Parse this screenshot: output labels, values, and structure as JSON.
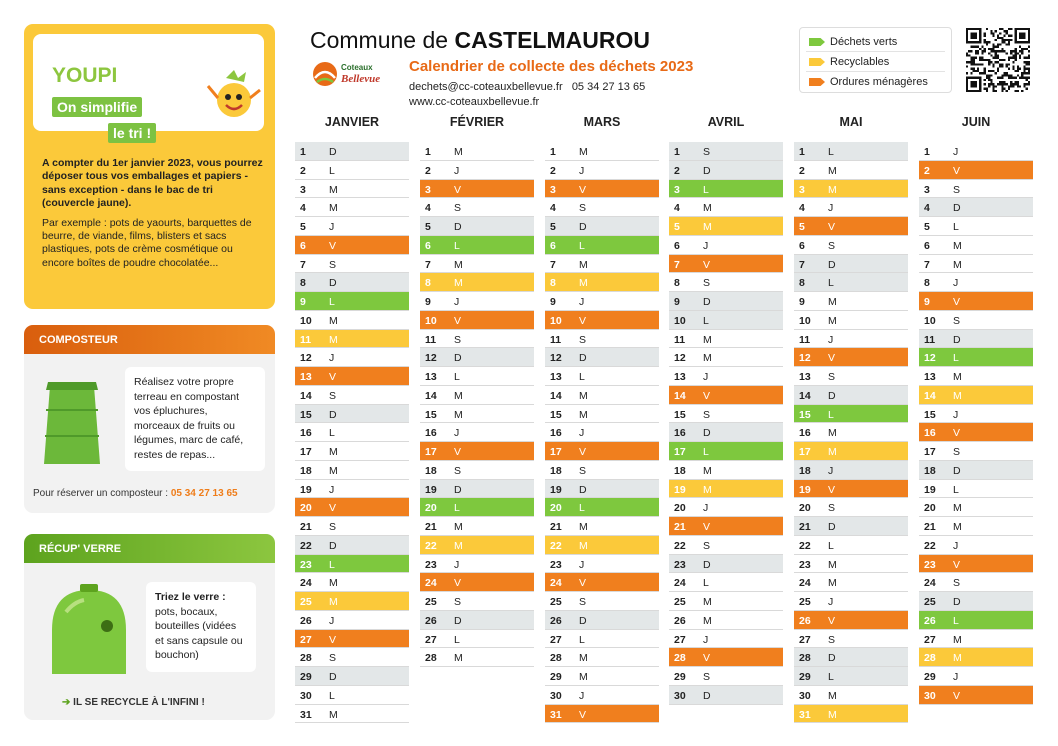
{
  "header": {
    "title_prefix": "Commune de ",
    "title_town": "CASTELMAUROU",
    "subtitle": "Calendrier de collecte des déchets 2023",
    "email": "dechets@cc-coteauxbellevue.fr",
    "phone": "05 34 27 13 65",
    "website": "www.cc-coteauxbellevue.fr",
    "logo_text_1": "Coteaux",
    "logo_text_2": "Bellevue"
  },
  "legend": [
    {
      "label": "Déchets verts",
      "color": "#7ec83e"
    },
    {
      "label": "Recyclables",
      "color": "#fbc93a"
    },
    {
      "label": "Ordures ménagères",
      "color": "#f07f1e"
    }
  ],
  "youpi": {
    "brand": "YOUPI",
    "tag_1": "On simplifie",
    "tag_2": "le tri !",
    "intro": "A compter du 1er janvier 2023, vous pourrez déposer tous vos emballages et papiers - sans exception - dans le bac de tri (couvercle jaune).",
    "example": "Par exemple : pots de yaourts, barquettes de beurre, de viande, films, blisters et sacs plastiques, pots de crème cosmétique ou encore boîtes de poudre chocolatée..."
  },
  "composteur": {
    "title": "COMPOSTEUR",
    "text": "Réalisez votre propre terreau en compostant vos épluchures, morceaux de fruits ou légumes, marc de café, restes de repas...",
    "reserve_label": "Pour réserver un composteur : ",
    "reserve_phone": "05 34 27 13 65"
  },
  "verre": {
    "title": "RÉCUP' VERRE",
    "text_bold": "Triez le verre :",
    "text": "pots, bocaux, bouteilles (vidées et sans capsule ou bouchon)",
    "footer": "IL SE RECYCLE À L'INFINI !"
  },
  "months": [
    {
      "name": "JANVIER",
      "days": [
        {
          "n": "1",
          "l": "D",
          "c": "grey"
        },
        {
          "n": "2",
          "l": "L",
          "c": "white"
        },
        {
          "n": "3",
          "l": "M",
          "c": "white"
        },
        {
          "n": "4",
          "l": "M",
          "c": "white"
        },
        {
          "n": "5",
          "l": "J",
          "c": "white"
        },
        {
          "n": "6",
          "l": "V",
          "c": "orange"
        },
        {
          "n": "7",
          "l": "S",
          "c": "white"
        },
        {
          "n": "8",
          "l": "D",
          "c": "grey"
        },
        {
          "n": "9",
          "l": "L",
          "c": "green"
        },
        {
          "n": "10",
          "l": "M",
          "c": "white"
        },
        {
          "n": "11",
          "l": "M",
          "c": "yellow"
        },
        {
          "n": "12",
          "l": "J",
          "c": "white"
        },
        {
          "n": "13",
          "l": "V",
          "c": "orange"
        },
        {
          "n": "14",
          "l": "S",
          "c": "white"
        },
        {
          "n": "15",
          "l": "D",
          "c": "grey"
        },
        {
          "n": "16",
          "l": "L",
          "c": "white"
        },
        {
          "n": "17",
          "l": "M",
          "c": "white"
        },
        {
          "n": "18",
          "l": "M",
          "c": "white"
        },
        {
          "n": "19",
          "l": "J",
          "c": "white"
        },
        {
          "n": "20",
          "l": "V",
          "c": "orange"
        },
        {
          "n": "21",
          "l": "S",
          "c": "white"
        },
        {
          "n": "22",
          "l": "D",
          "c": "grey"
        },
        {
          "n": "23",
          "l": "L",
          "c": "green"
        },
        {
          "n": "24",
          "l": "M",
          "c": "white"
        },
        {
          "n": "25",
          "l": "M",
          "c": "yellow"
        },
        {
          "n": "26",
          "l": "J",
          "c": "white"
        },
        {
          "n": "27",
          "l": "V",
          "c": "orange"
        },
        {
          "n": "28",
          "l": "S",
          "c": "white"
        },
        {
          "n": "29",
          "l": "D",
          "c": "grey"
        },
        {
          "n": "30",
          "l": "L",
          "c": "white"
        },
        {
          "n": "31",
          "l": "M",
          "c": "white"
        }
      ]
    },
    {
      "name": "FÉVRIER",
      "days": [
        {
          "n": "1",
          "l": "M",
          "c": "white"
        },
        {
          "n": "2",
          "l": "J",
          "c": "white"
        },
        {
          "n": "3",
          "l": "V",
          "c": "orange"
        },
        {
          "n": "4",
          "l": "S",
          "c": "white"
        },
        {
          "n": "5",
          "l": "D",
          "c": "grey"
        },
        {
          "n": "6",
          "l": "L",
          "c": "green"
        },
        {
          "n": "7",
          "l": "M",
          "c": "white"
        },
        {
          "n": "8",
          "l": "M",
          "c": "yellow"
        },
        {
          "n": "9",
          "l": "J",
          "c": "white"
        },
        {
          "n": "10",
          "l": "V",
          "c": "orange"
        },
        {
          "n": "11",
          "l": "S",
          "c": "white"
        },
        {
          "n": "12",
          "l": "D",
          "c": "grey"
        },
        {
          "n": "13",
          "l": "L",
          "c": "white"
        },
        {
          "n": "14",
          "l": "M",
          "c": "white"
        },
        {
          "n": "15",
          "l": "M",
          "c": "white"
        },
        {
          "n": "16",
          "l": "J",
          "c": "white"
        },
        {
          "n": "17",
          "l": "V",
          "c": "orange"
        },
        {
          "n": "18",
          "l": "S",
          "c": "white"
        },
        {
          "n": "19",
          "l": "D",
          "c": "grey"
        },
        {
          "n": "20",
          "l": "L",
          "c": "green"
        },
        {
          "n": "21",
          "l": "M",
          "c": "white"
        },
        {
          "n": "22",
          "l": "M",
          "c": "yellow"
        },
        {
          "n": "23",
          "l": "J",
          "c": "white"
        },
        {
          "n": "24",
          "l": "V",
          "c": "orange"
        },
        {
          "n": "25",
          "l": "S",
          "c": "white"
        },
        {
          "n": "26",
          "l": "D",
          "c": "grey"
        },
        {
          "n": "27",
          "l": "L",
          "c": "white"
        },
        {
          "n": "28",
          "l": "M",
          "c": "white"
        }
      ]
    },
    {
      "name": "MARS",
      "days": [
        {
          "n": "1",
          "l": "M",
          "c": "white"
        },
        {
          "n": "2",
          "l": "J",
          "c": "white"
        },
        {
          "n": "3",
          "l": "V",
          "c": "orange"
        },
        {
          "n": "4",
          "l": "S",
          "c": "white"
        },
        {
          "n": "5",
          "l": "D",
          "c": "grey"
        },
        {
          "n": "6",
          "l": "L",
          "c": "green"
        },
        {
          "n": "7",
          "l": "M",
          "c": "white"
        },
        {
          "n": "8",
          "l": "M",
          "c": "yellow"
        },
        {
          "n": "9",
          "l": "J",
          "c": "white"
        },
        {
          "n": "10",
          "l": "V",
          "c": "orange"
        },
        {
          "n": "11",
          "l": "S",
          "c": "white"
        },
        {
          "n": "12",
          "l": "D",
          "c": "grey"
        },
        {
          "n": "13",
          "l": "L",
          "c": "white"
        },
        {
          "n": "14",
          "l": "M",
          "c": "white"
        },
        {
          "n": "15",
          "l": "M",
          "c": "white"
        },
        {
          "n": "16",
          "l": "J",
          "c": "white"
        },
        {
          "n": "17",
          "l": "V",
          "c": "orange"
        },
        {
          "n": "18",
          "l": "S",
          "c": "white"
        },
        {
          "n": "19",
          "l": "D",
          "c": "grey"
        },
        {
          "n": "20",
          "l": "L",
          "c": "green"
        },
        {
          "n": "21",
          "l": "M",
          "c": "white"
        },
        {
          "n": "22",
          "l": "M",
          "c": "yellow"
        },
        {
          "n": "23",
          "l": "J",
          "c": "white"
        },
        {
          "n": "24",
          "l": "V",
          "c": "orange"
        },
        {
          "n": "25",
          "l": "S",
          "c": "white"
        },
        {
          "n": "26",
          "l": "D",
          "c": "grey"
        },
        {
          "n": "27",
          "l": "L",
          "c": "white"
        },
        {
          "n": "28",
          "l": "M",
          "c": "white"
        },
        {
          "n": "29",
          "l": "M",
          "c": "white"
        },
        {
          "n": "30",
          "l": "J",
          "c": "white"
        },
        {
          "n": "31",
          "l": "V",
          "c": "orange"
        }
      ]
    },
    {
      "name": "AVRIL",
      "days": [
        {
          "n": "1",
          "l": "S",
          "c": "grey"
        },
        {
          "n": "2",
          "l": "D",
          "c": "grey"
        },
        {
          "n": "3",
          "l": "L",
          "c": "green"
        },
        {
          "n": "4",
          "l": "M",
          "c": "white"
        },
        {
          "n": "5",
          "l": "M",
          "c": "yellow"
        },
        {
          "n": "6",
          "l": "J",
          "c": "white"
        },
        {
          "n": "7",
          "l": "V",
          "c": "orange"
        },
        {
          "n": "8",
          "l": "S",
          "c": "white"
        },
        {
          "n": "9",
          "l": "D",
          "c": "grey"
        },
        {
          "n": "10",
          "l": "L",
          "c": "grey"
        },
        {
          "n": "11",
          "l": "M",
          "c": "white"
        },
        {
          "n": "12",
          "l": "M",
          "c": "white"
        },
        {
          "n": "13",
          "l": "J",
          "c": "white"
        },
        {
          "n": "14",
          "l": "V",
          "c": "orange"
        },
        {
          "n": "15",
          "l": "S",
          "c": "white"
        },
        {
          "n": "16",
          "l": "D",
          "c": "grey"
        },
        {
          "n": "17",
          "l": "L",
          "c": "green"
        },
        {
          "n": "18",
          "l": "M",
          "c": "white"
        },
        {
          "n": "19",
          "l": "M",
          "c": "yellow"
        },
        {
          "n": "20",
          "l": "J",
          "c": "white"
        },
        {
          "n": "21",
          "l": "V",
          "c": "orange"
        },
        {
          "n": "22",
          "l": "S",
          "c": "white"
        },
        {
          "n": "23",
          "l": "D",
          "c": "grey"
        },
        {
          "n": "24",
          "l": "L",
          "c": "white"
        },
        {
          "n": "25",
          "l": "M",
          "c": "white"
        },
        {
          "n": "26",
          "l": "M",
          "c": "white"
        },
        {
          "n": "27",
          "l": "J",
          "c": "white"
        },
        {
          "n": "28",
          "l": "V",
          "c": "orange"
        },
        {
          "n": "29",
          "l": "S",
          "c": "white"
        },
        {
          "n": "30",
          "l": "D",
          "c": "grey"
        }
      ]
    },
    {
      "name": "MAI",
      "days": [
        {
          "n": "1",
          "l": "L",
          "c": "grey"
        },
        {
          "n": "2",
          "l": "M",
          "c": "white"
        },
        {
          "n": "3",
          "l": "M",
          "c": "yellow"
        },
        {
          "n": "4",
          "l": "J",
          "c": "white"
        },
        {
          "n": "5",
          "l": "V",
          "c": "orange"
        },
        {
          "n": "6",
          "l": "S",
          "c": "white"
        },
        {
          "n": "7",
          "l": "D",
          "c": "grey"
        },
        {
          "n": "8",
          "l": "L",
          "c": "grey"
        },
        {
          "n": "9",
          "l": "M",
          "c": "white"
        },
        {
          "n": "10",
          "l": "M",
          "c": "white"
        },
        {
          "n": "11",
          "l": "J",
          "c": "white"
        },
        {
          "n": "12",
          "l": "V",
          "c": "orange"
        },
        {
          "n": "13",
          "l": "S",
          "c": "white"
        },
        {
          "n": "14",
          "l": "D",
          "c": "grey"
        },
        {
          "n": "15",
          "l": "L",
          "c": "green"
        },
        {
          "n": "16",
          "l": "M",
          "c": "white"
        },
        {
          "n": "17",
          "l": "M",
          "c": "yellow"
        },
        {
          "n": "18",
          "l": "J",
          "c": "grey"
        },
        {
          "n": "19",
          "l": "V",
          "c": "orange"
        },
        {
          "n": "20",
          "l": "S",
          "c": "white"
        },
        {
          "n": "21",
          "l": "D",
          "c": "grey"
        },
        {
          "n": "22",
          "l": "L",
          "c": "white"
        },
        {
          "n": "23",
          "l": "M",
          "c": "white"
        },
        {
          "n": "24",
          "l": "M",
          "c": "white"
        },
        {
          "n": "25",
          "l": "J",
          "c": "white"
        },
        {
          "n": "26",
          "l": "V",
          "c": "orange"
        },
        {
          "n": "27",
          "l": "S",
          "c": "white"
        },
        {
          "n": "28",
          "l": "D",
          "c": "grey"
        },
        {
          "n": "29",
          "l": "L",
          "c": "grey"
        },
        {
          "n": "30",
          "l": "M",
          "c": "white"
        },
        {
          "n": "31",
          "l": "M",
          "c": "yellow"
        }
      ]
    },
    {
      "name": "JUIN",
      "days": [
        {
          "n": "1",
          "l": "J",
          "c": "white"
        },
        {
          "n": "2",
          "l": "V",
          "c": "orange"
        },
        {
          "n": "3",
          "l": "S",
          "c": "white"
        },
        {
          "n": "4",
          "l": "D",
          "c": "grey"
        },
        {
          "n": "5",
          "l": "L",
          "c": "white"
        },
        {
          "n": "6",
          "l": "M",
          "c": "white"
        },
        {
          "n": "7",
          "l": "M",
          "c": "white"
        },
        {
          "n": "8",
          "l": "J",
          "c": "white"
        },
        {
          "n": "9",
          "l": "V",
          "c": "orange"
        },
        {
          "n": "10",
          "l": "S",
          "c": "white"
        },
        {
          "n": "11",
          "l": "D",
          "c": "grey"
        },
        {
          "n": "12",
          "l": "L",
          "c": "green"
        },
        {
          "n": "13",
          "l": "M",
          "c": "white"
        },
        {
          "n": "14",
          "l": "M",
          "c": "yellow"
        },
        {
          "n": "15",
          "l": "J",
          "c": "white"
        },
        {
          "n": "16",
          "l": "V",
          "c": "orange"
        },
        {
          "n": "17",
          "l": "S",
          "c": "white"
        },
        {
          "n": "18",
          "l": "D",
          "c": "grey"
        },
        {
          "n": "19",
          "l": "L",
          "c": "white"
        },
        {
          "n": "20",
          "l": "M",
          "c": "white"
        },
        {
          "n": "21",
          "l": "M",
          "c": "white"
        },
        {
          "n": "22",
          "l": "J",
          "c": "white"
        },
        {
          "n": "23",
          "l": "V",
          "c": "orange"
        },
        {
          "n": "24",
          "l": "S",
          "c": "white"
        },
        {
          "n": "25",
          "l": "D",
          "c": "grey"
        },
        {
          "n": "26",
          "l": "L",
          "c": "green"
        },
        {
          "n": "27",
          "l": "M",
          "c": "white"
        },
        {
          "n": "28",
          "l": "M",
          "c": "yellow"
        },
        {
          "n": "29",
          "l": "J",
          "c": "white"
        },
        {
          "n": "30",
          "l": "V",
          "c": "orange"
        }
      ]
    }
  ]
}
